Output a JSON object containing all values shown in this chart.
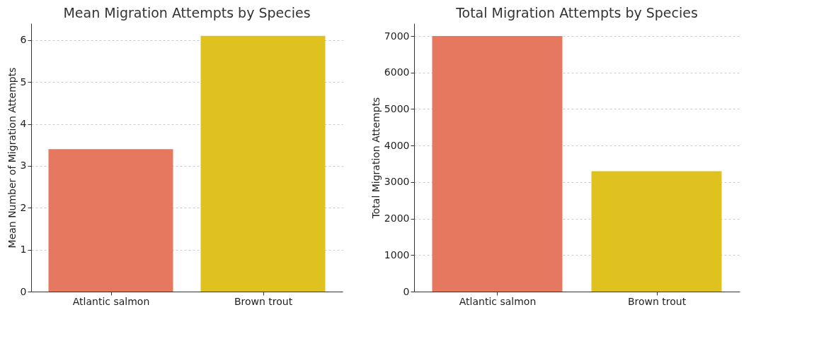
{
  "chart_data": [
    {
      "type": "bar",
      "title": "Mean Migration Attempts by Species",
      "ylabel": "Mean Number of Migration Attempts",
      "categories": [
        "Atlantic salmon",
        "Brown trout"
      ],
      "values": [
        3.4,
        6.1
      ],
      "colors": [
        "#e5785f",
        "#dfc220"
      ],
      "ylim": [
        0,
        6.4
      ],
      "yticks": [
        0,
        1,
        2,
        3,
        4,
        5,
        6
      ],
      "grid": "y"
    },
    {
      "type": "bar",
      "title": "Total Migration Attempts by Species",
      "ylabel": "Total Migration Attempts",
      "categories": [
        "Atlantic salmon",
        "Brown trout"
      ],
      "values": [
        7000,
        3300
      ],
      "colors": [
        "#e5785f",
        "#dfc220"
      ],
      "ylim": [
        0,
        7350
      ],
      "yticks": [
        0,
        1000,
        2000,
        3000,
        4000,
        5000,
        6000,
        7000
      ],
      "grid": "y"
    }
  ]
}
